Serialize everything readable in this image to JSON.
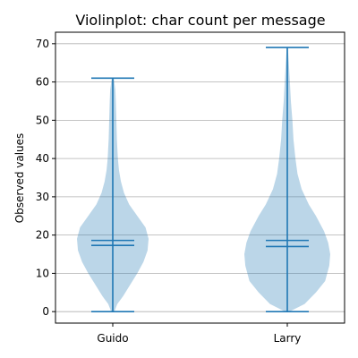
{
  "chart_data": {
    "type": "violin",
    "title": "Violinplot: char count per message",
    "xlabel": "",
    "ylabel": "Observed values",
    "categories": [
      "Guido",
      "Larry"
    ],
    "ylim": [
      -3,
      73
    ],
    "yticks": [
      0,
      10,
      20,
      30,
      40,
      50,
      60,
      70
    ],
    "grid": "horizontal",
    "colors": {
      "body": "#1f77b4",
      "body_alpha": 0.3,
      "lines": "#1f77b4",
      "grid": "#b0b0b0"
    },
    "series": [
      {
        "category": "Guido",
        "min": 0,
        "max": 61,
        "median": 17.3,
        "mean": 18.6,
        "density": [
          [
            0,
            1.5
          ],
          [
            2,
            4.5
          ],
          [
            4,
            10
          ],
          [
            7,
            17
          ],
          [
            10,
            24
          ],
          [
            13,
            30
          ],
          [
            16,
            34
          ],
          [
            19,
            35
          ],
          [
            22,
            32
          ],
          [
            25,
            24
          ],
          [
            28,
            16
          ],
          [
            31,
            11
          ],
          [
            34,
            8
          ],
          [
            37,
            6
          ],
          [
            40,
            5
          ],
          [
            45,
            4
          ],
          [
            50,
            3.5
          ],
          [
            55,
            3
          ],
          [
            58,
            2.5
          ],
          [
            61,
            1
          ]
        ]
      },
      {
        "category": "Larry",
        "min": 0,
        "max": 69,
        "median": 17.0,
        "mean": 18.6,
        "density": [
          [
            0,
            2
          ],
          [
            2,
            17
          ],
          [
            5,
            28
          ],
          [
            8,
            37
          ],
          [
            12,
            41
          ],
          [
            15,
            42
          ],
          [
            18,
            40
          ],
          [
            21,
            36
          ],
          [
            25,
            28
          ],
          [
            28,
            21
          ],
          [
            32,
            14
          ],
          [
            36,
            10
          ],
          [
            40,
            8
          ],
          [
            45,
            6
          ],
          [
            50,
            5
          ],
          [
            55,
            3.5
          ],
          [
            60,
            2.5
          ],
          [
            65,
            1.5
          ],
          [
            69,
            0.5
          ]
        ]
      }
    ]
  }
}
